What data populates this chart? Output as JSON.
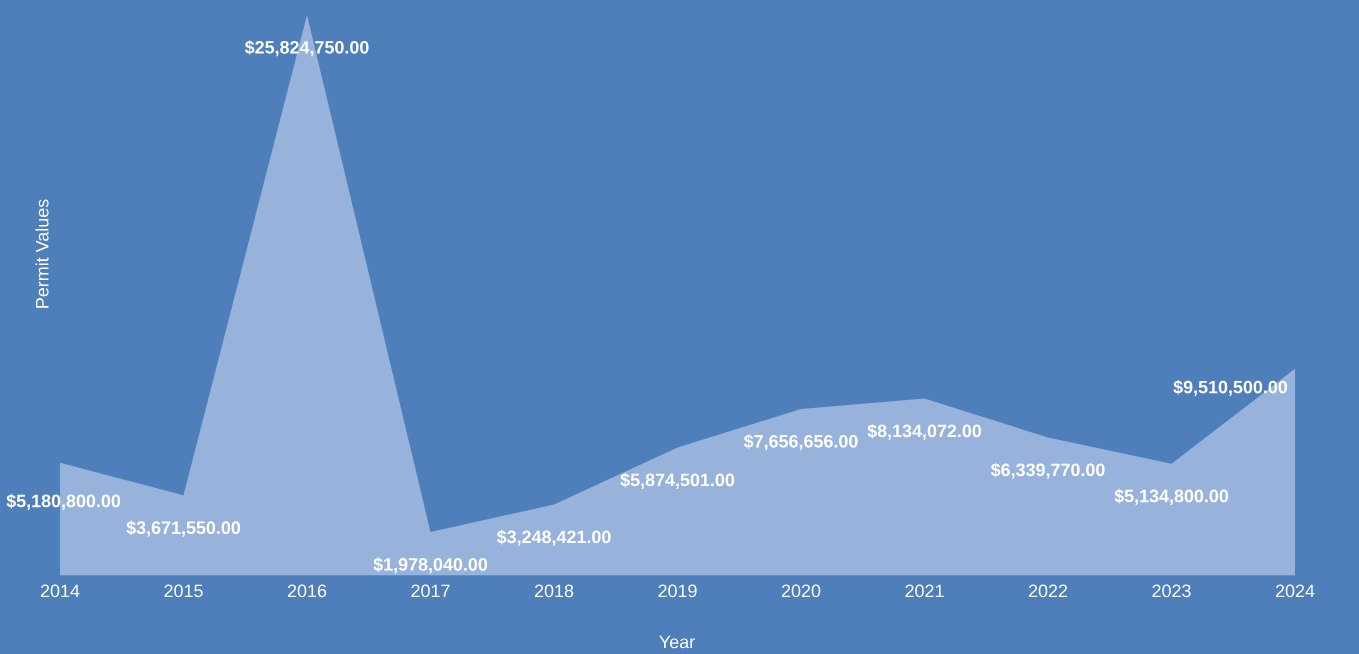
{
  "chart_data": {
    "type": "area",
    "xlabel": "Year",
    "ylabel": "Permit Values",
    "categories": [
      "2014",
      "2015",
      "2016",
      "2017",
      "2018",
      "2019",
      "2020",
      "2021",
      "2022",
      "2023",
      "2024"
    ],
    "values": [
      5180800,
      3671550,
      25824750,
      1978040,
      3248421,
      5874501,
      7656656,
      8134072,
      6339770,
      5134800,
      9510500
    ],
    "value_labels": [
      "$5,180,800.00",
      "$3,671,550.00",
      "$25,824,750.00",
      "$1,978,040.00",
      "$3,248,421.00",
      "$5,874,501.00",
      "$7,656,656.00",
      "$8,134,072.00",
      "$6,339,770.00",
      "$5,134,800.00",
      "$9,510,500.00"
    ],
    "color": "#97b3dc"
  }
}
